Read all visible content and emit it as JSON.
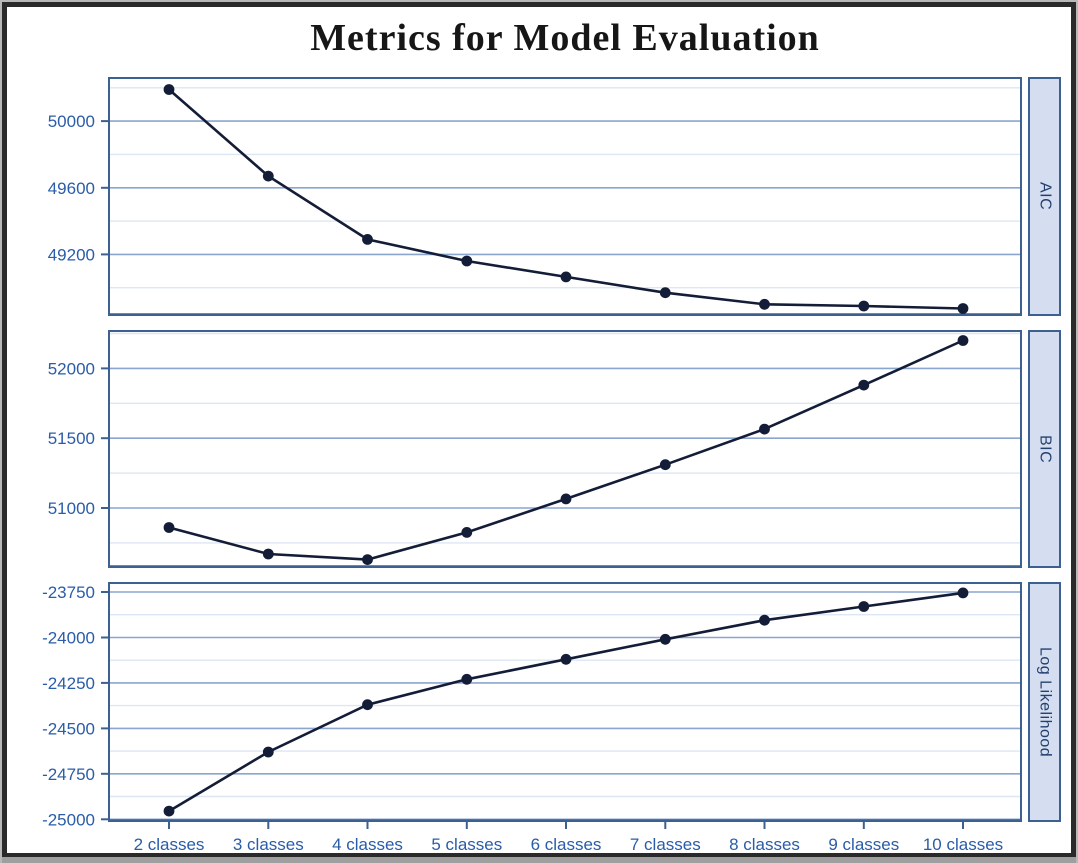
{
  "title": "Metrics for Model Evaluation",
  "colors": {
    "label_blue": "#2a5ca8",
    "grid_major": "#8aa6cf",
    "grid_minor": "#dde6f3",
    "plot_border": "#3c6191",
    "strip_fill": "#d4def0",
    "strip_text": "#24406e",
    "data_line": "#141d38",
    "title_color": "#161616",
    "frame_dark": "#2a2a2a",
    "frame_gray": "#9f9f9f"
  },
  "chart_data": [
    {
      "type": "line",
      "panel_label": "AIC",
      "categories": [
        "2 classes",
        "3 classes",
        "4 classes",
        "5 classes",
        "6 classes",
        "7 classes",
        "8 classes",
        "9 classes",
        "10 classes"
      ],
      "values": [
        50190,
        49670,
        49290,
        49160,
        49065,
        48970,
        48900,
        48890,
        48875
      ],
      "ylim": [
        48830,
        50265
      ],
      "yticks_labeled": [
        50000,
        49600,
        49200
      ],
      "yticks_minor": [
        50200,
        49800,
        49400,
        49000
      ],
      "xlabel": "",
      "ylabel": "AIC",
      "grid": "horizontal",
      "legend": "none"
    },
    {
      "type": "line",
      "panel_label": "BIC",
      "categories": [
        "2 classes",
        "3 classes",
        "4 classes",
        "5 classes",
        "6 classes",
        "7 classes",
        "8 classes",
        "9 classes",
        "10 classes"
      ],
      "values": [
        50860,
        50670,
        50630,
        50825,
        51065,
        51310,
        51565,
        51880,
        52200
      ],
      "ylim": [
        50570,
        52275
      ],
      "yticks_labeled": [
        52000,
        51500,
        51000
      ],
      "yticks_minor": [
        52250,
        51750,
        51250,
        50750
      ],
      "xlabel": "",
      "ylabel": "BIC",
      "grid": "horizontal",
      "legend": "none"
    },
    {
      "type": "line",
      "panel_label": "Log Likelihood",
      "categories": [
        "2 classes",
        "3 classes",
        "4 classes",
        "5 classes",
        "6 classes",
        "7 classes",
        "8 classes",
        "9 classes",
        "10 classes"
      ],
      "values": [
        -24955,
        -24630,
        -24370,
        -24230,
        -24120,
        -24010,
        -23905,
        -23830,
        -23755
      ],
      "ylim": [
        -25015,
        -23695
      ],
      "yticks_labeled": [
        -23750,
        -24000,
        -24250,
        -24500,
        -24750,
        -25000
      ],
      "yticks_minor": [
        -23875,
        -24125,
        -24375,
        -24625,
        -24875
      ],
      "xlabel": "",
      "ylabel": "Log Likelihood",
      "grid": "horizontal",
      "legend": "none"
    }
  ]
}
